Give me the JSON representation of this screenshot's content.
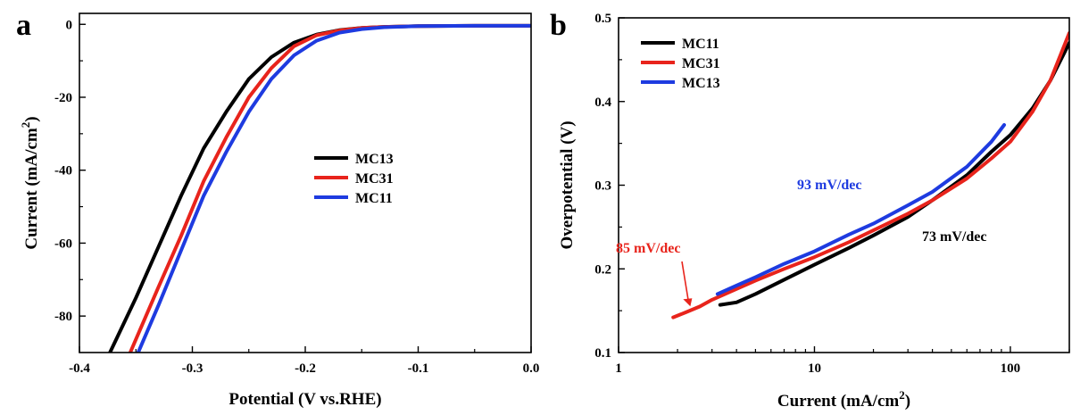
{
  "panels": [
    {
      "letter": "a"
    },
    {
      "letter": "b"
    }
  ],
  "chart_data": [
    {
      "type": "line",
      "panel": "a",
      "xlabel": "Potential (V vs.RHE)",
      "ylabel": {
        "main": "Current (mA/cm",
        "sup": "2",
        "tail": ")"
      },
      "xlim": [
        -0.4,
        0.0
      ],
      "ylim": [
        -90,
        3
      ],
      "xticks": [
        -0.4,
        -0.3,
        -0.2,
        -0.1,
        0.0
      ],
      "xticklabels": [
        "-0.4",
        "-0.3",
        "-0.2",
        "-0.1",
        "0.0"
      ],
      "yticks": [
        0,
        -20,
        -40,
        -60,
        -80
      ],
      "yticklabels": [
        "0",
        "-20",
        "-40",
        "-60",
        "-80"
      ],
      "grid": false,
      "legend_position": "center-right",
      "series": [
        {
          "name": "MC13",
          "color": "#000000",
          "x": [
            -0.373,
            -0.35,
            -0.33,
            -0.31,
            -0.29,
            -0.27,
            -0.25,
            -0.23,
            -0.21,
            -0.19,
            -0.17,
            -0.15,
            -0.13,
            -0.1,
            -0.05,
            0.0
          ],
          "y": [
            -90,
            -75,
            -61,
            -47,
            -34,
            -24,
            -15,
            -9,
            -5,
            -2.8,
            -1.6,
            -1.0,
            -0.7,
            -0.5,
            -0.4,
            -0.4
          ]
        },
        {
          "name": "MC31",
          "color": "#e8241c",
          "x": [
            -0.355,
            -0.33,
            -0.31,
            -0.29,
            -0.27,
            -0.25,
            -0.23,
            -0.21,
            -0.19,
            -0.17,
            -0.15,
            -0.13,
            -0.1,
            -0.05,
            0.0
          ],
          "y": [
            -90,
            -72,
            -58,
            -43,
            -31,
            -20,
            -12,
            -6,
            -3,
            -1.7,
            -1.0,
            -0.7,
            -0.5,
            -0.4,
            -0.4
          ]
        },
        {
          "name": "MC11",
          "color": "#1e3be0",
          "x": [
            -0.348,
            -0.33,
            -0.31,
            -0.29,
            -0.27,
            -0.25,
            -0.23,
            -0.21,
            -0.19,
            -0.17,
            -0.15,
            -0.13,
            -0.1,
            -0.05,
            0.0
          ],
          "y": [
            -90,
            -77,
            -62,
            -47,
            -35,
            -24,
            -15,
            -8.5,
            -4.5,
            -2.3,
            -1.3,
            -0.8,
            -0.5,
            -0.4,
            -0.4
          ]
        }
      ],
      "legend_order": [
        "MC13",
        "MC31",
        "MC11"
      ]
    },
    {
      "type": "line",
      "panel": "b",
      "xscale": "log",
      "xlabel": {
        "main": "Current (mA/cm",
        "sup": "2",
        "tail": ")"
      },
      "ylabel": "Overpotential (V)",
      "xlim": [
        1,
        200
      ],
      "ylim": [
        0.1,
        0.5
      ],
      "xticks": [
        1,
        10,
        100
      ],
      "xticklabels": [
        "1",
        "10",
        "100"
      ],
      "yticks": [
        0.1,
        0.2,
        0.3,
        0.4,
        0.5
      ],
      "yticklabels": [
        "0.1",
        "0.2",
        "0.3",
        "0.4",
        "0.5"
      ],
      "grid": false,
      "legend_position": "top-left",
      "series": [
        {
          "name": "MC11",
          "color": "#000000",
          "x": [
            3.3,
            4,
            5,
            7,
            10,
            15,
            20,
            30,
            40,
            60,
            80,
            100,
            130,
            160,
            200
          ],
          "y": [
            0.157,
            0.16,
            0.17,
            0.187,
            0.205,
            0.225,
            0.24,
            0.262,
            0.282,
            0.312,
            0.34,
            0.36,
            0.392,
            0.425,
            0.47
          ]
        },
        {
          "name": "MC31",
          "color": "#e8241c",
          "x": [
            1.9,
            2.2,
            2.6,
            3,
            4,
            5,
            7,
            10,
            15,
            20,
            30,
            40,
            60,
            80,
            100,
            130,
            160,
            200
          ],
          "y": [
            0.142,
            0.148,
            0.155,
            0.163,
            0.176,
            0.186,
            0.2,
            0.214,
            0.232,
            0.246,
            0.266,
            0.282,
            0.308,
            0.332,
            0.352,
            0.388,
            0.425,
            0.482
          ]
        },
        {
          "name": "MC13",
          "color": "#1e3be0",
          "x": [
            3.2,
            4,
            5,
            7,
            10,
            15,
            20,
            30,
            40,
            60,
            80,
            93
          ],
          "y": [
            0.17,
            0.18,
            0.19,
            0.206,
            0.221,
            0.241,
            0.254,
            0.276,
            0.292,
            0.322,
            0.352,
            0.372
          ]
        }
      ],
      "legend_order": [
        "MC11",
        "MC31",
        "MC13"
      ],
      "annotations": [
        {
          "text": "93 mV/dec",
          "color": "#1e3be0"
        },
        {
          "text": "73 mV/dec",
          "color": "#000000"
        },
        {
          "text": "85 mV/dec",
          "color": "#e8241c"
        }
      ]
    }
  ]
}
